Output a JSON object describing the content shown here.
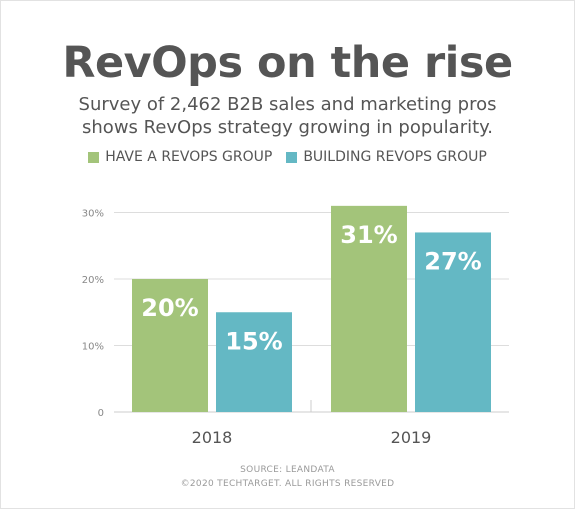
{
  "header": {
    "title": "RevOps on the rise",
    "subtitle_line1": "Survey of 2,462 B2B sales and marketing pros",
    "subtitle_line2": "shows RevOps strategy growing in popularity."
  },
  "legend": [
    {
      "label": "HAVE A REVOPS GROUP",
      "color": "#a3c47a"
    },
    {
      "label": "BUILDING REVOPS GROUP",
      "color": "#64b8c4"
    }
  ],
  "chart_data": {
    "type": "bar",
    "categories": [
      "2018",
      "2019"
    ],
    "series": [
      {
        "name": "HAVE A REVOPS GROUP",
        "values": [
          20,
          31
        ],
        "color": "#a3c47a"
      },
      {
        "name": "BUILDING REVOPS GROUP",
        "values": [
          15,
          27
        ],
        "color": "#64b8c4"
      }
    ],
    "data_labels": [
      [
        "20%",
        "31%"
      ],
      [
        "15%",
        "27%"
      ]
    ],
    "y_ticks": [
      {
        "value": 0,
        "label": "0"
      },
      {
        "value": 10,
        "label": "10%"
      },
      {
        "value": 20,
        "label": "20%"
      },
      {
        "value": 30,
        "label": "30%"
      }
    ],
    "ylim": [
      0,
      31
    ],
    "grid": true,
    "legend_position": "top"
  },
  "footer": {
    "source": "SOURCE: LEANDATA",
    "copyright": "©2020 TECHTARGET. ALL RIGHTS RESERVED"
  }
}
